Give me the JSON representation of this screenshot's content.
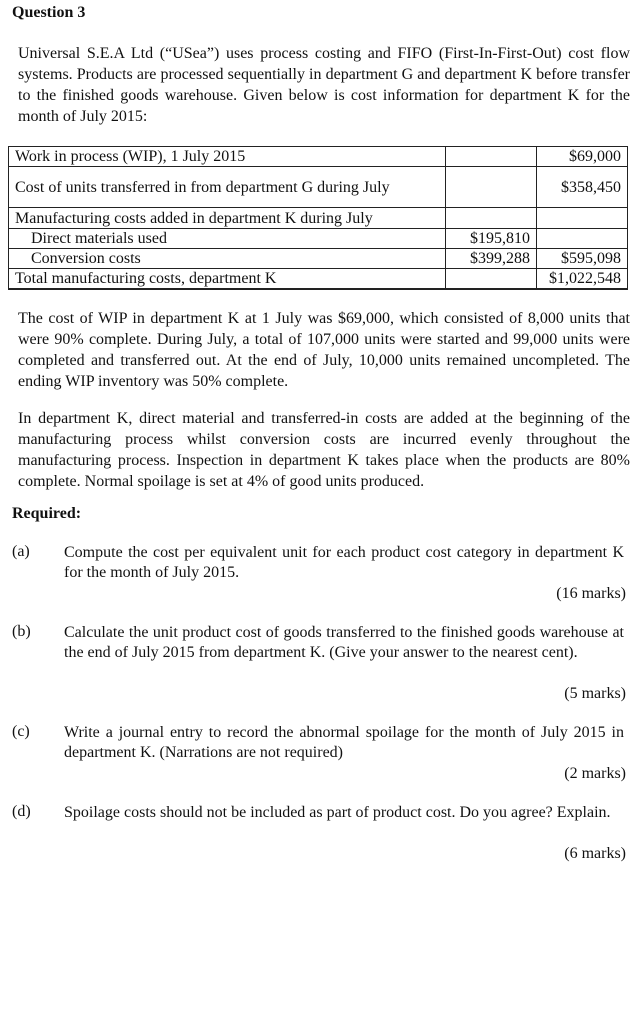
{
  "title": "Question 3",
  "intro": "Universal S.E.A Ltd (“USea”) uses process costing and FIFO (First-In-First-Out) cost flow systems. Products are processed sequentially in department G and department K before transfer to the finished goods warehouse. Given below is cost information for department K for the month of July 2015:",
  "table": [
    {
      "label": "Work in process (WIP), 1 July 2015",
      "mid": "",
      "total": "$69,000"
    },
    {
      "label": "Cost of units transferred in from department G during July",
      "mid": "",
      "total": "$358,450"
    },
    {
      "label": "Manufacturing costs added in department K during July",
      "mid": "",
      "total": ""
    },
    {
      "label": "Direct materials used",
      "mid": "$195,810",
      "total": ""
    },
    {
      "label": "Conversion costs",
      "mid": "$399,288",
      "total": "$595,098"
    },
    {
      "label": "Total manufacturing costs, department K",
      "mid": "",
      "total": "$1,022,548"
    }
  ],
  "para1": "The cost of WIP in department K at 1 July was $69,000, which consisted of 8,000 units that were 90% complete. During July, a total of 107,000 units were started and 99,000 units were completed and transferred out. At the end of July, 10,000 units remained uncompleted. The ending WIP inventory was 50% complete.",
  "para2": "In department K, direct material and transferred-in costs are added at the beginning of the manufacturing process whilst conversion costs are incurred evenly throughout the manufacturing process. Inspection in department K takes place when the products are 80% complete. Normal spoilage is set at 4% of good units produced.",
  "required": "Required:",
  "questions": [
    {
      "label": "(a)",
      "text": "Compute the cost per equivalent unit for each product cost category in department K for the month of July 2015.",
      "marks": "(16 marks)"
    },
    {
      "label": "(b)",
      "text": "Calculate the unit product cost of goods transferred to the finished goods warehouse at the end of July 2015 from department K. (Give your answer to the nearest cent).",
      "marks": "(5 marks)"
    },
    {
      "label": "(c)",
      "text": "Write a journal entry to record the abnormal spoilage for the month of July 2015 in department K. (Narrations are not required)",
      "marks": "(2 marks)"
    },
    {
      "label": "(d)",
      "text": "Spoilage costs should not be included as part of product cost. Do you agree? Explain.",
      "marks": "(6 marks)"
    }
  ]
}
